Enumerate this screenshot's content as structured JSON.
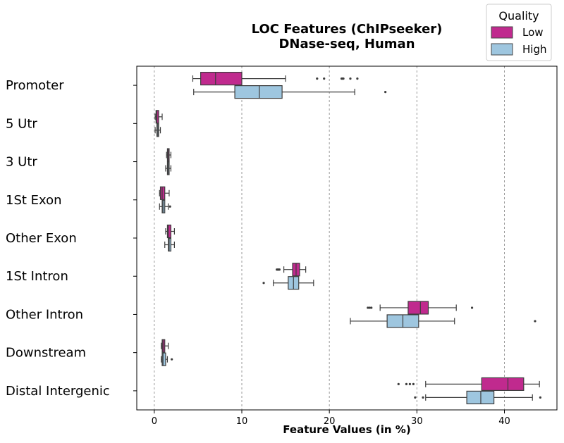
{
  "chart_data": {
    "type": "boxplot",
    "orientation": "horizontal",
    "title": "LOC Features (ChIPseeker)",
    "subtitle": "DNase-seq, Human",
    "xlabel": "Feature Values (in %)",
    "ylabel": "",
    "xlim": [
      -2,
      46
    ],
    "xticks": [
      0,
      10,
      20,
      30,
      40
    ],
    "grid": "x-dashed",
    "legend": {
      "title": "Quality",
      "placement": "top-right",
      "entries": [
        "Low",
        "High"
      ]
    },
    "colors": {
      "Low": "#C02A8E",
      "High": "#9EC6DF"
    },
    "categories": [
      "Promoter",
      "5 Utr",
      "3 Utr",
      "1St Exon",
      "Other Exon",
      "1St Intron",
      "Other Intron",
      "Downstream",
      "Distal Intergenic"
    ],
    "series": [
      {
        "name": "Low",
        "boxes": [
          {
            "whislo": 4.4,
            "q1": 5.3,
            "med": 7.0,
            "q3": 10.0,
            "whishi": 15.0,
            "fliers": [
              18.6,
              19.4,
              21.4,
              21.5,
              21.6,
              22.4,
              23.2
            ]
          },
          {
            "whislo": 0.1,
            "q1": 0.2,
            "med": 0.3,
            "q3": 0.5,
            "whishi": 0.9,
            "fliers": []
          },
          {
            "whislo": 1.4,
            "q1": 1.5,
            "med": 1.6,
            "q3": 1.7,
            "whishi": 1.9,
            "fliers": []
          },
          {
            "whislo": 0.6,
            "q1": 0.7,
            "med": 0.9,
            "q3": 1.2,
            "whishi": 1.7,
            "fliers": []
          },
          {
            "whislo": 1.3,
            "q1": 1.5,
            "med": 1.6,
            "q3": 1.9,
            "whishi": 2.3,
            "fliers": []
          },
          {
            "whislo": 14.8,
            "q1": 15.8,
            "med": 16.2,
            "q3": 16.6,
            "whishi": 17.3,
            "fliers": [
              14.0,
              14.1,
              14.2,
              14.3
            ]
          },
          {
            "whislo": 25.8,
            "q1": 29.0,
            "med": 30.4,
            "q3": 31.3,
            "whishi": 34.5,
            "fliers": [
              24.4,
              24.6,
              24.8,
              36.3
            ]
          },
          {
            "whislo": 0.8,
            "q1": 0.9,
            "med": 1.0,
            "q3": 1.2,
            "whishi": 1.6,
            "fliers": []
          },
          {
            "whislo": 31.0,
            "q1": 37.4,
            "med": 40.4,
            "q3": 42.2,
            "whishi": 44.0,
            "fliers": [
              27.9,
              28.8,
              29.2,
              29.6
            ]
          }
        ]
      },
      {
        "name": "High",
        "boxes": [
          {
            "whislo": 4.5,
            "q1": 9.2,
            "med": 12.0,
            "q3": 14.6,
            "whishi": 22.9,
            "fliers": [
              26.4
            ]
          },
          {
            "whislo": 0.1,
            "q1": 0.3,
            "med": 0.4,
            "q3": 0.5,
            "whishi": 0.7,
            "fliers": []
          },
          {
            "whislo": 1.3,
            "q1": 1.5,
            "med": 1.6,
            "q3": 1.7,
            "whishi": 1.9,
            "fliers": []
          },
          {
            "whislo": 0.6,
            "q1": 0.9,
            "med": 1.0,
            "q3": 1.2,
            "whishi": 1.6,
            "fliers": [
              1.8
            ]
          },
          {
            "whislo": 1.2,
            "q1": 1.6,
            "med": 1.7,
            "q3": 1.9,
            "whishi": 2.3,
            "fliers": []
          },
          {
            "whislo": 13.6,
            "q1": 15.3,
            "med": 15.9,
            "q3": 16.5,
            "whishi": 18.2,
            "fliers": [
              12.5
            ]
          },
          {
            "whislo": 22.4,
            "q1": 26.6,
            "med": 28.4,
            "q3": 30.2,
            "whishi": 34.3,
            "fliers": [
              43.5
            ]
          },
          {
            "whislo": 0.8,
            "q1": 0.9,
            "med": 1.0,
            "q3": 1.3,
            "whishi": 1.5,
            "fliers": [
              2.0
            ]
          },
          {
            "whislo": 31.0,
            "q1": 35.7,
            "med": 37.3,
            "q3": 38.8,
            "whishi": 43.2,
            "fliers": [
              29.8,
              30.7,
              44.1
            ]
          }
        ]
      }
    ]
  }
}
